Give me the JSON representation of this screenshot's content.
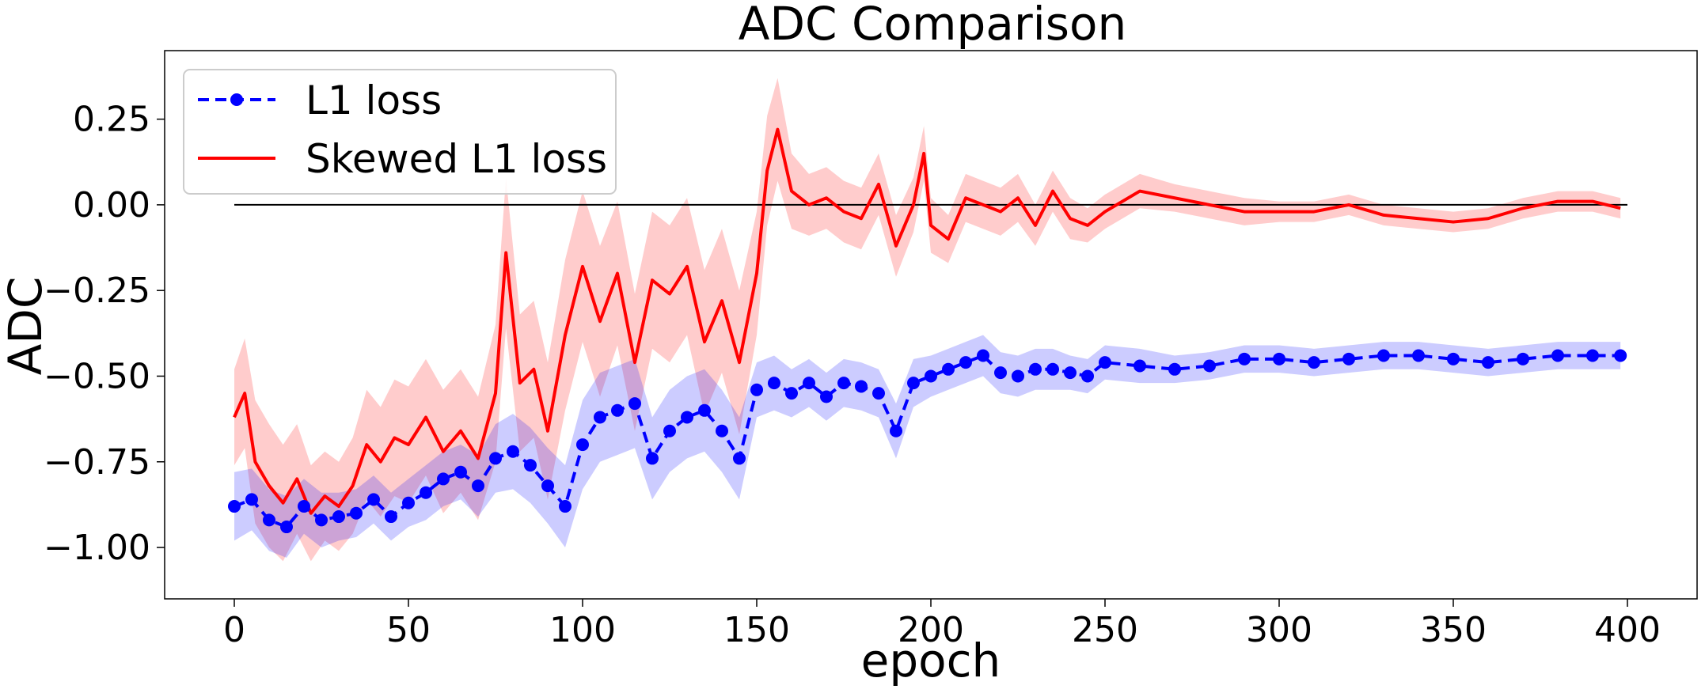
{
  "chart_data": {
    "type": "line",
    "title": "ADC Comparison",
    "xlabel": "epoch",
    "ylabel": "ADC",
    "xlim": [
      -20,
      420
    ],
    "ylim": [
      -1.15,
      0.45
    ],
    "grid": false,
    "legend_position": "top-left",
    "xticks": [
      0,
      50,
      100,
      150,
      200,
      250,
      300,
      350,
      400
    ],
    "xtick_labels": [
      "0",
      "50",
      "100",
      "150",
      "200",
      "250",
      "300",
      "350",
      "400"
    ],
    "yticks": [
      0.25,
      0.0,
      -0.25,
      -0.5,
      -0.75,
      -1.0
    ],
    "ytick_labels": [
      "0.25",
      "0.00",
      "−0.25",
      "−0.50",
      "−0.75",
      "−1.00"
    ],
    "reference_line": {
      "y": 0.0,
      "x_range": [
        0,
        400
      ],
      "color": "#000000"
    },
    "series": [
      {
        "name": "L1 loss",
        "color": "#0000ff",
        "line_style": "dashed",
        "marker": "circle",
        "x": [
          0,
          5,
          10,
          15,
          20,
          25,
          30,
          35,
          40,
          45,
          50,
          55,
          60,
          65,
          70,
          75,
          80,
          85,
          90,
          95,
          100,
          105,
          110,
          115,
          120,
          125,
          130,
          135,
          140,
          145,
          150,
          155,
          160,
          165,
          170,
          175,
          180,
          185,
          190,
          195,
          200,
          205,
          210,
          215,
          220,
          225,
          230,
          235,
          240,
          245,
          250,
          260,
          270,
          280,
          290,
          300,
          310,
          320,
          330,
          340,
          350,
          360,
          370,
          380,
          390,
          398
        ],
        "values": [
          -0.88,
          -0.86,
          -0.92,
          -0.94,
          -0.88,
          -0.92,
          -0.91,
          -0.9,
          -0.86,
          -0.91,
          -0.87,
          -0.84,
          -0.8,
          -0.78,
          -0.82,
          -0.74,
          -0.72,
          -0.76,
          -0.82,
          -0.88,
          -0.7,
          -0.62,
          -0.6,
          -0.58,
          -0.74,
          -0.66,
          -0.62,
          -0.6,
          -0.66,
          -0.74,
          -0.54,
          -0.52,
          -0.55,
          -0.52,
          -0.56,
          -0.52,
          -0.53,
          -0.55,
          -0.66,
          -0.52,
          -0.5,
          -0.48,
          -0.46,
          -0.44,
          -0.49,
          -0.5,
          -0.48,
          -0.48,
          -0.49,
          -0.5,
          -0.46,
          -0.47,
          -0.48,
          -0.47,
          -0.45,
          -0.45,
          -0.46,
          -0.45,
          -0.44,
          -0.44,
          -0.45,
          -0.46,
          -0.45,
          -0.44,
          -0.44,
          -0.44
        ],
        "band_halfwidth": [
          0.1,
          0.09,
          0.09,
          0.09,
          0.08,
          0.08,
          0.07,
          0.07,
          0.07,
          0.07,
          0.07,
          0.08,
          0.08,
          0.08,
          0.09,
          0.1,
          0.11,
          0.11,
          0.11,
          0.12,
          0.13,
          0.13,
          0.13,
          0.13,
          0.12,
          0.12,
          0.12,
          0.12,
          0.12,
          0.12,
          0.08,
          0.08,
          0.07,
          0.07,
          0.07,
          0.07,
          0.07,
          0.07,
          0.08,
          0.07,
          0.06,
          0.06,
          0.06,
          0.06,
          0.06,
          0.06,
          0.06,
          0.06,
          0.05,
          0.05,
          0.05,
          0.05,
          0.04,
          0.04,
          0.04,
          0.04,
          0.04,
          0.04,
          0.04,
          0.04,
          0.04,
          0.04,
          0.04,
          0.04,
          0.04,
          0.04
        ]
      },
      {
        "name": "Skewed L1 loss",
        "color": "#ff0000",
        "line_style": "solid",
        "marker": "none",
        "x": [
          0,
          3,
          6,
          10,
          14,
          18,
          22,
          26,
          30,
          34,
          38,
          42,
          46,
          50,
          55,
          60,
          65,
          70,
          75,
          78,
          82,
          86,
          90,
          95,
          100,
          105,
          110,
          115,
          120,
          125,
          130,
          135,
          140,
          145,
          150,
          153,
          156,
          160,
          165,
          170,
          175,
          180,
          185,
          190,
          195,
          198,
          200,
          205,
          210,
          215,
          220,
          225,
          230,
          235,
          240,
          245,
          250,
          260,
          270,
          280,
          290,
          300,
          310,
          320,
          330,
          340,
          350,
          360,
          370,
          380,
          390,
          398
        ],
        "values": [
          -0.62,
          -0.55,
          -0.75,
          -0.82,
          -0.87,
          -0.8,
          -0.9,
          -0.85,
          -0.88,
          -0.82,
          -0.7,
          -0.75,
          -0.68,
          -0.7,
          -0.62,
          -0.72,
          -0.66,
          -0.74,
          -0.55,
          -0.14,
          -0.52,
          -0.48,
          -0.66,
          -0.38,
          -0.18,
          -0.34,
          -0.2,
          -0.46,
          -0.22,
          -0.26,
          -0.18,
          -0.4,
          -0.28,
          -0.46,
          -0.2,
          0.1,
          0.22,
          0.04,
          0.0,
          0.02,
          -0.02,
          -0.04,
          0.06,
          -0.12,
          0.0,
          0.15,
          -0.06,
          -0.1,
          0.02,
          0.0,
          -0.02,
          0.02,
          -0.06,
          0.04,
          -0.04,
          -0.06,
          -0.02,
          0.04,
          0.02,
          0.0,
          -0.02,
          -0.02,
          -0.02,
          0.0,
          -0.03,
          -0.04,
          -0.05,
          -0.04,
          -0.01,
          0.01,
          0.01,
          -0.01
        ],
        "band_halfwidth": [
          0.14,
          0.16,
          0.18,
          0.18,
          0.17,
          0.16,
          0.14,
          0.13,
          0.13,
          0.14,
          0.16,
          0.16,
          0.17,
          0.17,
          0.17,
          0.18,
          0.18,
          0.18,
          0.2,
          0.22,
          0.2,
          0.2,
          0.2,
          0.22,
          0.22,
          0.22,
          0.21,
          0.2,
          0.2,
          0.2,
          0.2,
          0.21,
          0.21,
          0.21,
          0.18,
          0.16,
          0.15,
          0.11,
          0.09,
          0.09,
          0.09,
          0.09,
          0.09,
          0.09,
          0.08,
          0.08,
          0.08,
          0.07,
          0.07,
          0.07,
          0.07,
          0.07,
          0.06,
          0.06,
          0.06,
          0.05,
          0.05,
          0.05,
          0.04,
          0.04,
          0.04,
          0.03,
          0.03,
          0.03,
          0.03,
          0.03,
          0.03,
          0.03,
          0.03,
          0.03,
          0.03,
          0.03
        ]
      }
    ]
  }
}
